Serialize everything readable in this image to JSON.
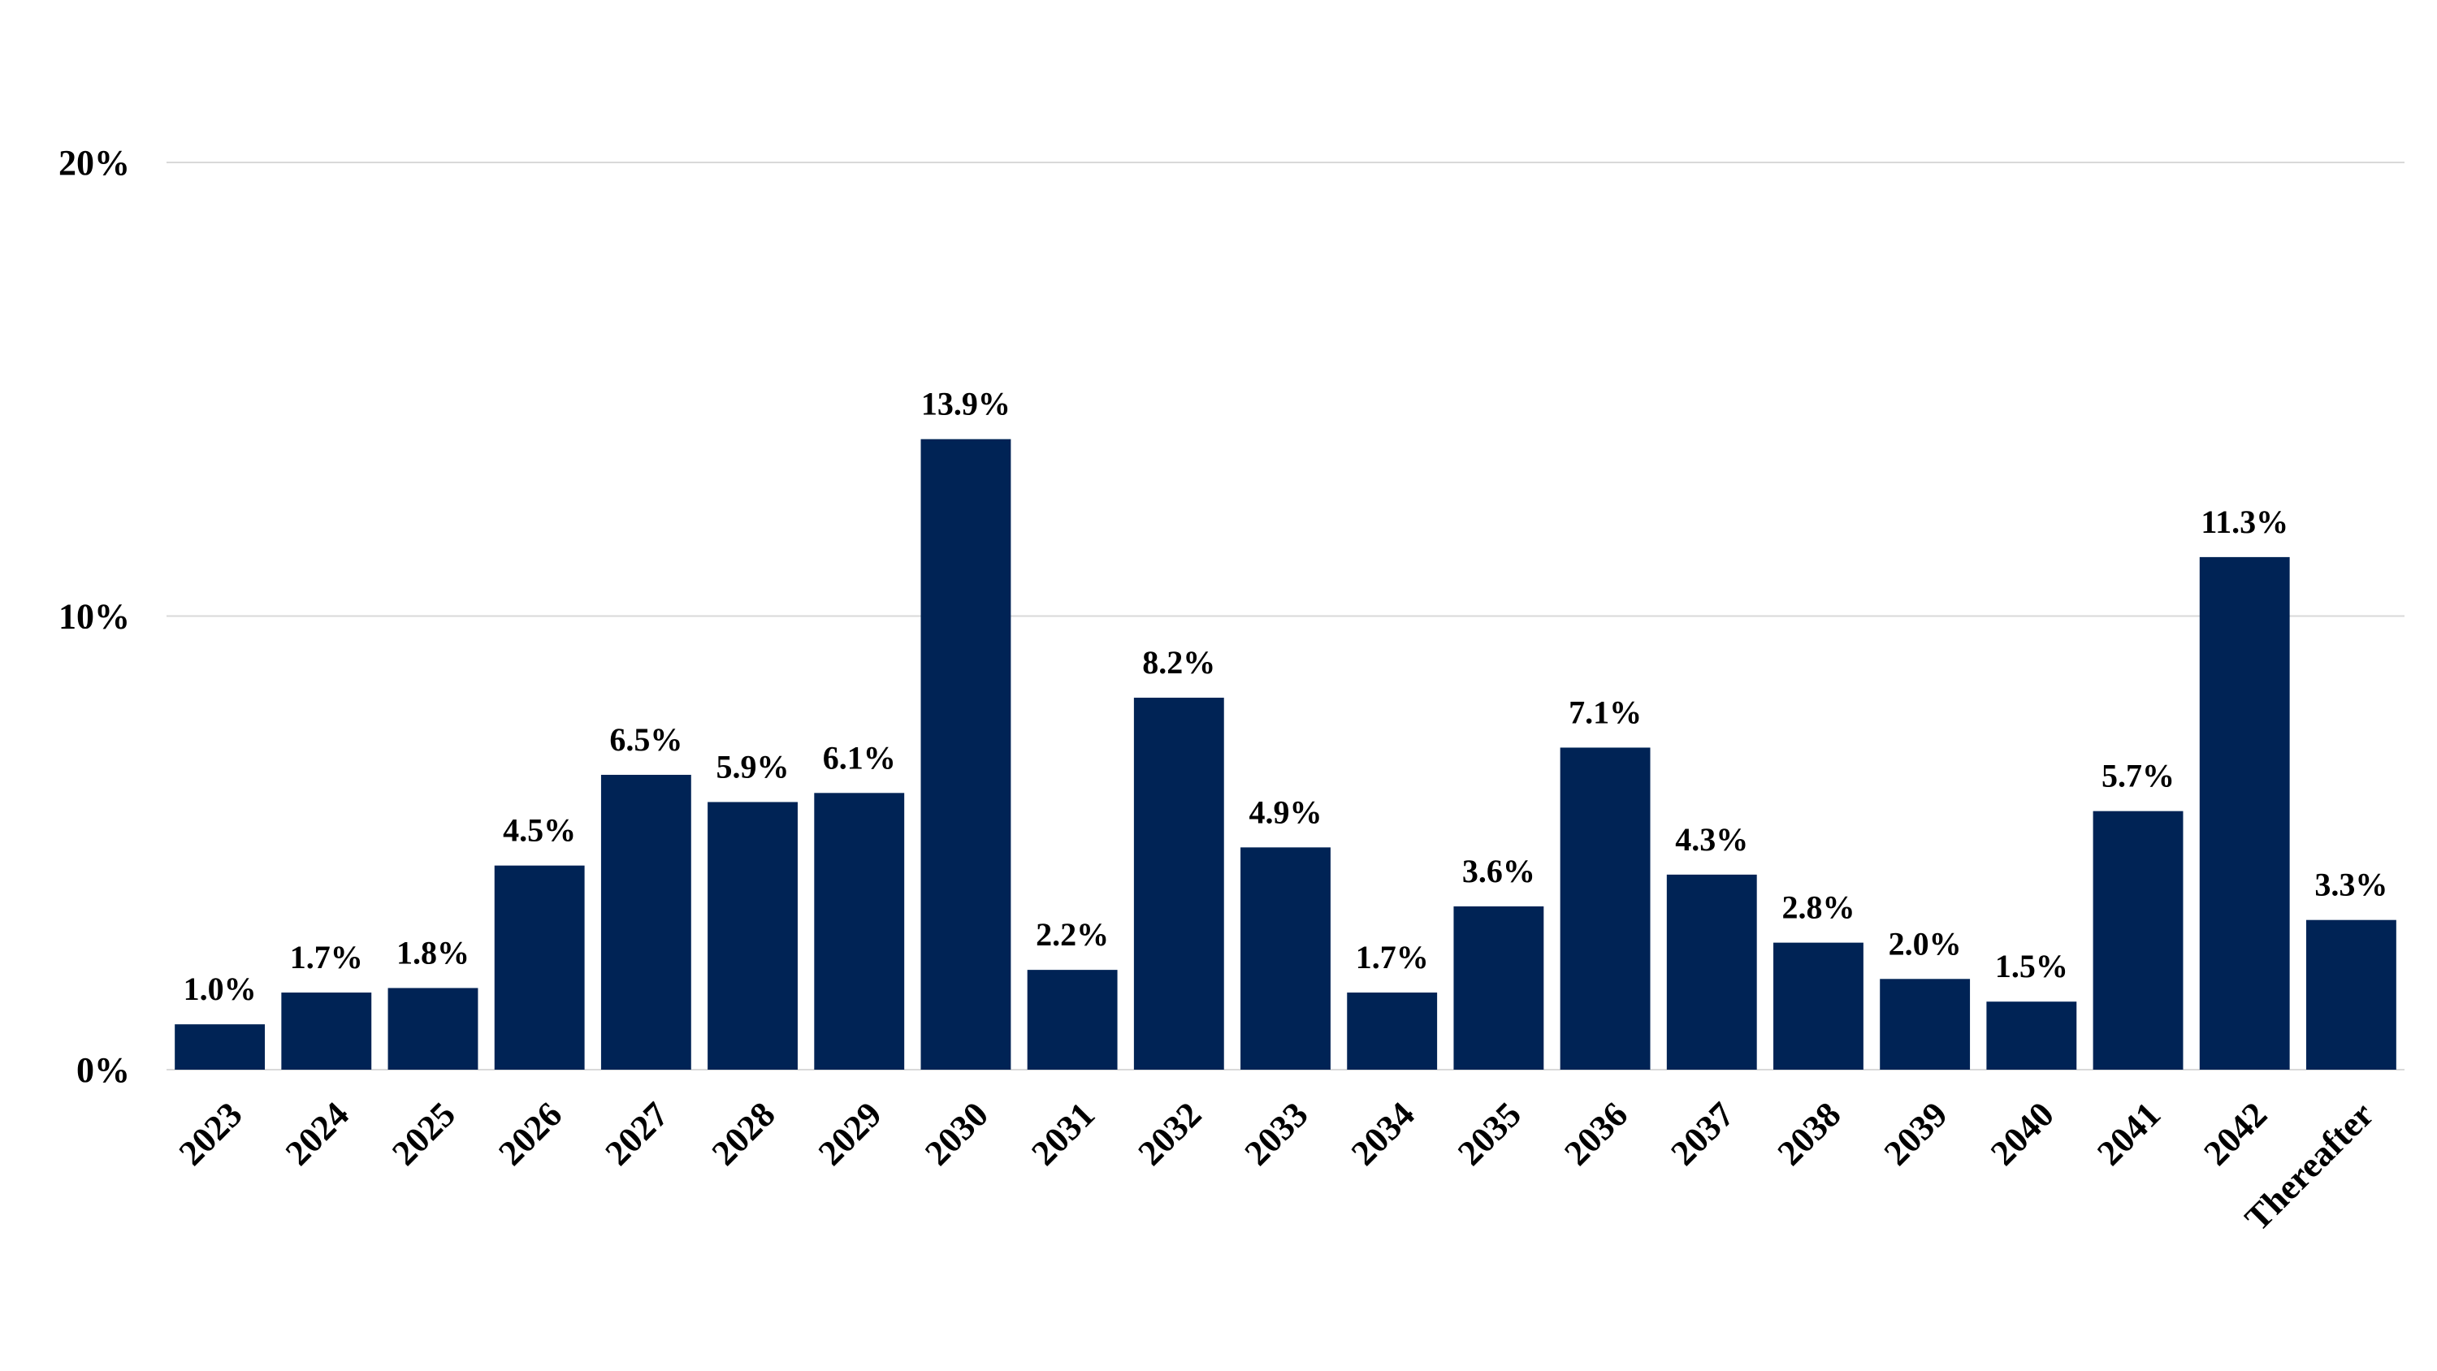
{
  "chart_data": {
    "type": "bar",
    "title": "",
    "xlabel": "",
    "ylabel": "",
    "categories": [
      "2023",
      "2024",
      "2025",
      "2026",
      "2027",
      "2028",
      "2029",
      "2030",
      "2031",
      "2032",
      "2033",
      "2034",
      "2035",
      "2036",
      "2037",
      "2038",
      "2039",
      "2040",
      "2041",
      "2042",
      "Thereafter"
    ],
    "values": [
      1.0,
      1.7,
      1.8,
      4.5,
      6.5,
      5.9,
      6.1,
      13.9,
      2.2,
      8.2,
      4.9,
      1.7,
      3.6,
      7.1,
      4.3,
      2.8,
      2.0,
      1.5,
      5.7,
      11.3,
      3.3
    ],
    "data_labels": [
      "1.0%",
      "1.7%",
      "1.8%",
      "4.5%",
      "6.5%",
      "5.9%",
      "6.1%",
      "13.9%",
      "2.2%",
      "8.2%",
      "4.9%",
      "1.7%",
      "3.6%",
      "7.1%",
      "4.3%",
      "2.8%",
      "2.0%",
      "1.5%",
      "5.7%",
      "11.3%",
      "3.3%"
    ],
    "ylim": [
      0,
      20
    ],
    "yticks": [
      0,
      10,
      20
    ],
    "ytick_labels": [
      "0%",
      "10%",
      "20%"
    ],
    "grid": true,
    "legend": "none",
    "bar_color": "#002355",
    "gridline_color": "#d9d9d9"
  }
}
